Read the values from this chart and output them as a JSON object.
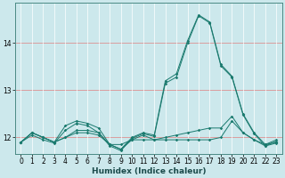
{
  "xlabel": "Humidex (Indice chaleur)",
  "bg_color": "#cce8ec",
  "grid_color_major": "#f0a0a0",
  "grid_color_minor": "#ffffff",
  "line_color": "#1a7a6e",
  "xlim": [
    -0.5,
    23.5
  ],
  "ylim": [
    11.65,
    14.85
  ],
  "yticks": [
    12,
    13,
    14
  ],
  "xticks": [
    0,
    1,
    2,
    3,
    4,
    5,
    6,
    7,
    8,
    9,
    10,
    11,
    12,
    13,
    14,
    15,
    16,
    17,
    18,
    19,
    20,
    21,
    22,
    23
  ],
  "series": [
    {
      "x": [
        0,
        1,
        2,
        3,
        4,
        5,
        6,
        7,
        8,
        9,
        10,
        11,
        12,
        13,
        14,
        15,
        16,
        17,
        18,
        19,
        20,
        21,
        22,
        23
      ],
      "y": [
        11.9,
        12.1,
        12.0,
        11.9,
        12.0,
        12.1,
        12.1,
        12.05,
        11.85,
        11.85,
        11.95,
        11.95,
        11.95,
        11.95,
        11.95,
        11.95,
        11.95,
        11.95,
        12.0,
        12.35,
        12.1,
        11.95,
        11.85,
        11.9
      ]
    },
    {
      "x": [
        0,
        1,
        2,
        3,
        4,
        5,
        6,
        7,
        8,
        9,
        10,
        11,
        12,
        13,
        14,
        15,
        16,
        17,
        18,
        19,
        20,
        21,
        22,
        23
      ],
      "y": [
        11.9,
        12.1,
        12.0,
        11.9,
        12.25,
        12.35,
        12.3,
        12.2,
        11.85,
        11.75,
        12.0,
        12.1,
        12.05,
        13.2,
        13.35,
        14.05,
        14.6,
        14.45,
        13.55,
        13.3,
        12.5,
        12.1,
        11.85,
        11.95
      ]
    },
    {
      "x": [
        0,
        1,
        2,
        3,
        4,
        5,
        6,
        7,
        8,
        9,
        10,
        11,
        12,
        13,
        14,
        15,
        16,
        17,
        18,
        19,
        20,
        21,
        22,
        23
      ],
      "y": [
        11.9,
        12.05,
        11.95,
        11.88,
        12.15,
        12.3,
        12.25,
        12.1,
        11.82,
        11.72,
        11.98,
        12.08,
        12.02,
        13.15,
        13.28,
        14.0,
        14.58,
        14.43,
        13.52,
        13.28,
        12.48,
        12.08,
        11.82,
        11.92
      ]
    },
    {
      "x": [
        0,
        1,
        2,
        3,
        4,
        5,
        6,
        7,
        8,
        9,
        10,
        11,
        12,
        13,
        14,
        15,
        16,
        17,
        18,
        19,
        20,
        21,
        22,
        23
      ],
      "y": [
        11.9,
        12.1,
        12.0,
        11.9,
        12.0,
        12.15,
        12.15,
        12.1,
        11.85,
        11.75,
        11.95,
        12.05,
        11.95,
        12.0,
        12.05,
        12.1,
        12.15,
        12.2,
        12.2,
        12.45,
        12.1,
        11.95,
        11.82,
        11.88
      ]
    }
  ]
}
